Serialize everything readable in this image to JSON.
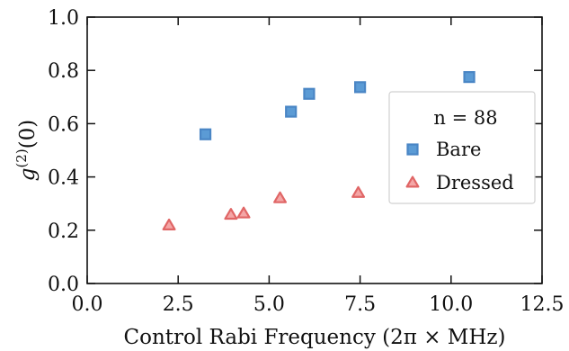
{
  "chart_data": {
    "type": "scatter",
    "xlabel": "Control Rabi Frequency (2π × MHz)",
    "ylabel": "g(2)(0)",
    "ylabel_base": "g",
    "ylabel_sup": "(2)",
    "ylabel_arg": "(0)",
    "xlim": [
      0.0,
      12.5
    ],
    "ylim": [
      0.0,
      1.0
    ],
    "xticks": [
      "0.0",
      "2.5",
      "5.0",
      "7.5",
      "10.0",
      "12.5"
    ],
    "xtick_values": [
      0.0,
      2.5,
      5.0,
      7.5,
      10.0,
      12.5
    ],
    "yticks": [
      "0.0",
      "0.2",
      "0.4",
      "0.6",
      "0.8",
      "1.0"
    ],
    "ytick_values": [
      0.0,
      0.2,
      0.4,
      0.6,
      0.8,
      1.0
    ],
    "grid": false,
    "legend_placement": "center-right",
    "legend_title": "n = 88",
    "series": [
      {
        "name": "Bare",
        "marker": "square",
        "color": "#5b9bd5",
        "edge_color": "#4a86c5",
        "x": [
          3.25,
          5.6,
          6.1,
          7.5,
          10.5
        ],
        "y": [
          0.56,
          0.645,
          0.712,
          0.737,
          0.775
        ]
      },
      {
        "name": "Dressed",
        "marker": "triangle",
        "color": "#f4a6a6",
        "edge_color": "#e06666",
        "x": [
          2.25,
          3.95,
          4.3,
          5.3,
          7.45
        ],
        "y": [
          0.218,
          0.258,
          0.263,
          0.32,
          0.34
        ]
      }
    ]
  }
}
